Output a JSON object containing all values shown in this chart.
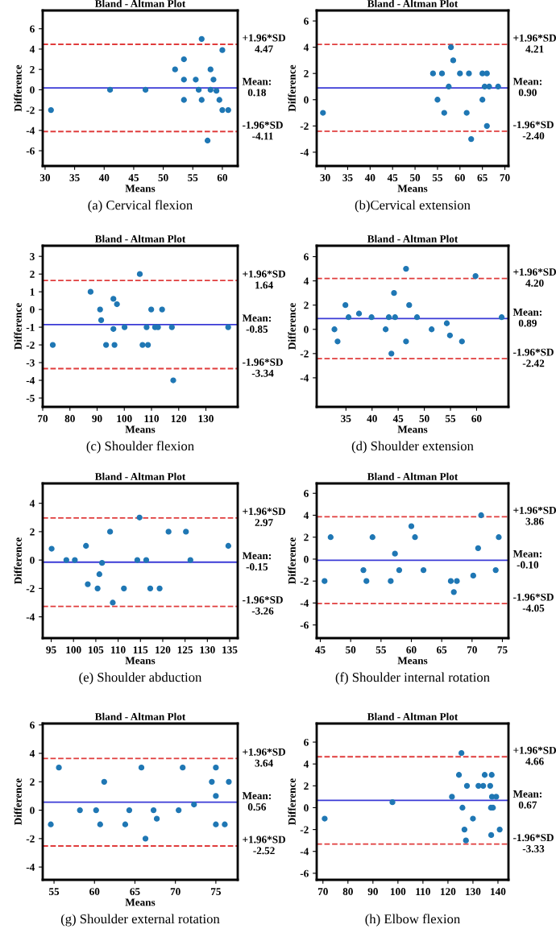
{
  "chart_data": [
    {
      "type": "scatter",
      "title": "Bland - Altman Plot",
      "xlabel": "Means",
      "ylabel": "Difference",
      "marker": "circle",
      "grid": false,
      "legend": false,
      "xlim": [
        29.6,
        62.6
      ],
      "xticks": [
        30,
        35,
        40,
        45,
        50,
        55,
        60
      ],
      "ylim": [
        -7.5,
        7.8
      ],
      "yticks": [
        -6,
        -4,
        -2,
        0,
        2,
        4,
        6
      ],
      "series": [
        {
          "color": "#1f77b4",
          "x": [
            31,
            41,
            47,
            52,
            53.5,
            53.5,
            53.5,
            55.5,
            56,
            56.5,
            56.5,
            57.5,
            58,
            58,
            58.5,
            59,
            59.5,
            60,
            60,
            61
          ],
          "values": [
            -2,
            0,
            0,
            2,
            3,
            1,
            -1,
            1,
            0,
            5,
            -1,
            -5,
            2,
            0,
            1,
            -0.1,
            -1,
            3.9,
            -2,
            -2
          ]
        }
      ],
      "ref_lines": [
        {
          "axis": "y",
          "value": 4.47,
          "label": "+1.96*SD\n4.47",
          "color": "#e03c3c",
          "line_style": "dashed"
        },
        {
          "axis": "y",
          "value": 0.18,
          "label": "Mean:\n0.18",
          "color": "#3a3ad6",
          "line_style": "solid"
        },
        {
          "axis": "y",
          "value": -4.11,
          "label": "-1.96*SD\n-4.11",
          "color": "#e03c3c",
          "line_style": "dashed"
        }
      ],
      "annotations": [
        "(a) Cervical flexion"
      ]
    },
    {
      "type": "scatter",
      "title": "Bland - Altman Plot",
      "xlabel": "Means",
      "ylabel": "Difference",
      "marker": "circle",
      "grid": false,
      "legend": false,
      "xlim": [
        28.1,
        70.8
      ],
      "xticks": [
        30,
        35,
        40,
        45,
        50,
        55,
        60,
        65,
        70
      ],
      "ylim": [
        -5.05,
        6.8
      ],
      "yticks": [
        -4,
        -2,
        0,
        2,
        4,
        6
      ],
      "series": [
        {
          "color": "#1f77b4",
          "x": [
            29.5,
            54,
            55,
            56,
            56.5,
            57.5,
            58,
            58.5,
            60,
            61.5,
            62,
            62.5,
            65,
            65,
            65.5,
            66,
            66,
            66.5,
            68.5
          ],
          "values": [
            -1,
            2,
            0,
            2,
            -1,
            1,
            4,
            3,
            2,
            -1,
            2,
            -3,
            2,
            0,
            1,
            2,
            -2,
            1,
            1
          ]
        }
      ],
      "ref_lines": [
        {
          "axis": "y",
          "value": 4.21,
          "label": "+1.96*SD\n4.21",
          "color": "#e03c3c",
          "line_style": "dashed"
        },
        {
          "axis": "y",
          "value": 0.9,
          "label": "Mean:\n0.90",
          "color": "#3a3ad6",
          "line_style": "solid"
        },
        {
          "axis": "y",
          "value": -2.4,
          "label": "-1.96*SD\n-2.40",
          "color": "#e03c3c",
          "line_style": "dashed"
        }
      ],
      "annotations": [
        "(b)Cervical extension"
      ]
    },
    {
      "type": "scatter",
      "title": "Bland - Altman Plot",
      "xlabel": "Means",
      "ylabel": "Difference",
      "marker": "circle",
      "grid": false,
      "legend": false,
      "xlim": [
        70,
        141.7
      ],
      "xticks": [
        70,
        80,
        90,
        100,
        110,
        120,
        130
      ],
      "ylim": [
        -5.5,
        3.6
      ],
      "yticks": [
        -5,
        -4,
        -3,
        -2,
        -1,
        0,
        1,
        2,
        3
      ],
      "series": [
        {
          "color": "#1f77b4",
          "x": [
            73.7,
            87.6,
            91.1,
            91.5,
            93.3,
            96,
            96,
            96.4,
            97.3,
            100.1,
            105.7,
            106.7,
            108.2,
            108.7,
            109.9,
            111.3,
            112.4,
            113.9,
            117.5,
            118,
            138.2
          ],
          "values": [
            -2,
            1,
            0,
            -0.6,
            -2,
            0.6,
            -1.1,
            -2,
            0.3,
            -1,
            2,
            -2,
            -1,
            -2,
            0,
            -1,
            -1,
            0,
            -1,
            -4,
            -1
          ]
        }
      ],
      "ref_lines": [
        {
          "axis": "y",
          "value": 1.64,
          "label": "+1.96*SD\n1.64",
          "color": "#e03c3c",
          "line_style": "dashed"
        },
        {
          "axis": "y",
          "value": -0.85,
          "label": "Mean:\n-0.85",
          "color": "#3a3ad6",
          "line_style": "solid"
        },
        {
          "axis": "y",
          "value": -3.34,
          "label": "-1.96*SD\n-3.34",
          "color": "#e03c3c",
          "line_style": "dashed"
        }
      ],
      "annotations": [
        "(c) Shoulder flexion"
      ]
    },
    {
      "type": "scatter",
      "title": "Bland - Altman Plot",
      "xlabel": "Means",
      "ylabel": "Difference",
      "marker": "circle",
      "grid": false,
      "legend": false,
      "xlim": [
        29.4,
        66.1
      ],
      "xticks": [
        35,
        40,
        45,
        50,
        55,
        60
      ],
      "ylim": [
        -6.4,
        6.9
      ],
      "yticks": [
        -4,
        -2,
        0,
        2,
        4,
        6
      ],
      "series": [
        {
          "color": "#1f77b4",
          "x": [
            32.8,
            33.4,
            34.9,
            35.5,
            37.5,
            39.9,
            42.6,
            43.2,
            43.7,
            44.2,
            44.4,
            46.5,
            46.5,
            47.1,
            48.6,
            51.4,
            54.3,
            54.9,
            57.2,
            59.8,
            64.8
          ],
          "values": [
            0,
            -1,
            2,
            1,
            1.3,
            1,
            0,
            1,
            -2,
            3,
            1,
            5,
            -1,
            2,
            1,
            0,
            0.5,
            -0.5,
            -1,
            4.4,
            1
          ]
        }
      ],
      "ref_lines": [
        {
          "axis": "y",
          "value": 4.2,
          "label": "+1.96*SD\n4.20",
          "color": "#e03c3c",
          "line_style": "dashed"
        },
        {
          "axis": "y",
          "value": 0.89,
          "label": "Mean:\n0.89",
          "color": "#3a3ad6",
          "line_style": "solid"
        },
        {
          "axis": "y",
          "value": -2.42,
          "label": "-1.96*SD\n-2.42",
          "color": "#e03c3c",
          "line_style": "dashed"
        }
      ],
      "annotations": [
        "(d) Shoulder extension"
      ]
    },
    {
      "type": "scatter",
      "title": "Bland - Altman Plot",
      "xlabel": "Means",
      "ylabel": "Difference",
      "marker": "circle",
      "grid": false,
      "legend": false,
      "xlim": [
        93.1,
        136.8
      ],
      "xticks": [
        95,
        100,
        105,
        110,
        115,
        120,
        125,
        130,
        135
      ],
      "ylim": [
        -5.5,
        5.4
      ],
      "yticks": [
        -4,
        -2,
        0,
        2,
        4
      ],
      "series": [
        {
          "color": "#1f77b4",
          "x": [
            95.1,
            98.4,
            100.3,
            102.8,
            103.2,
            105.4,
            105.8,
            106.4,
            108.2,
            108.8,
            111.3,
            114.3,
            114.8,
            116.3,
            117.2,
            119.3,
            121.3,
            125.2,
            126.2,
            134.7
          ],
          "values": [
            0.8,
            0,
            0,
            1,
            -1.7,
            -2,
            -1,
            -0.2,
            2,
            -3,
            -2,
            0,
            3,
            0,
            -2,
            -2,
            2,
            2,
            0,
            1
          ]
        }
      ],
      "ref_lines": [
        {
          "axis": "y",
          "value": 2.97,
          "label": "+1.96*SD\n2.97",
          "color": "#e03c3c",
          "line_style": "dashed"
        },
        {
          "axis": "y",
          "value": -0.15,
          "label": "Mean:\n-0.15",
          "color": "#3a3ad6",
          "line_style": "solid"
        },
        {
          "axis": "y",
          "value": -3.26,
          "label": "-1.96*SD\n-3.26",
          "color": "#e03c3c",
          "line_style": "dashed"
        }
      ],
      "annotations": [
        "(e) Shoulder abduction"
      ]
    },
    {
      "type": "scatter",
      "title": "Bland - Altman Plot",
      "xlabel": "Means",
      "ylabel": "Difference",
      "marker": "circle",
      "grid": false,
      "legend": false,
      "xlim": [
        44.4,
        76.0
      ],
      "xticks": [
        45,
        50,
        55,
        60,
        65,
        70,
        75
      ],
      "ylim": [
        -7.2,
        6.9
      ],
      "yticks": [
        -6,
        -4,
        -2,
        0,
        2,
        4,
        6
      ],
      "series": [
        {
          "color": "#1f77b4",
          "x": [
            45.7,
            46.7,
            52.1,
            52.6,
            53.6,
            56.6,
            57.3,
            58,
            60,
            60.6,
            62,
            66.5,
            67,
            67.5,
            70.2,
            71,
            71.5,
            73.9,
            74.4
          ],
          "values": [
            -2,
            2,
            -1,
            -2,
            2,
            -2,
            0.5,
            -1,
            3,
            2,
            -1,
            -2,
            -3,
            -2,
            -1.5,
            1,
            4,
            -1,
            2
          ]
        }
      ],
      "ref_lines": [
        {
          "axis": "y",
          "value": 3.86,
          "label": "+1.96*SD\n3.86",
          "color": "#e03c3c",
          "line_style": "dashed"
        },
        {
          "axis": "y",
          "value": -0.1,
          "label": "Mean:\n-0.10",
          "color": "#3a3ad6",
          "line_style": "solid"
        },
        {
          "axis": "y",
          "value": -4.05,
          "label": "-1.96*SD\n-4.05",
          "color": "#e03c3c",
          "line_style": "dashed"
        }
      ],
      "annotations": [
        "(f) Shoulder internal rotation"
      ]
    },
    {
      "type": "scatter",
      "title": "Bland - Altman Plot",
      "xlabel": "Means",
      "ylabel": "Difference",
      "marker": "circle",
      "grid": false,
      "legend": false,
      "xlim": [
        53.6,
        77.7
      ],
      "xticks": [
        55,
        60,
        65,
        70,
        75
      ],
      "ylim": [
        -4.9,
        6.1
      ],
      "yticks": [
        -4,
        -2,
        0,
        2,
        4,
        6
      ],
      "series": [
        {
          "color": "#1f77b4",
          "x": [
            54.6,
            55.6,
            58.2,
            60.2,
            60.7,
            61.2,
            63.8,
            64.3,
            65.8,
            66.3,
            67.3,
            67.7,
            70.4,
            70.9,
            72.3,
            74.5,
            75,
            75,
            75,
            76.1,
            76.6
          ],
          "values": [
            -1,
            3,
            0,
            0,
            -1,
            2,
            -1,
            0,
            3,
            -2,
            0,
            -0.6,
            0,
            3,
            0.4,
            2,
            3,
            1,
            -1,
            -1,
            2
          ]
        }
      ],
      "ref_lines": [
        {
          "axis": "y",
          "value": 3.64,
          "label": "+1.96*SD\n3.64",
          "color": "#e03c3c",
          "line_style": "dashed"
        },
        {
          "axis": "y",
          "value": 0.56,
          "label": "Mean:\n0.56",
          "color": "#3a3ad6",
          "line_style": "solid"
        },
        {
          "axis": "y",
          "value": -2.52,
          "label": "+1.96*SD\n-2.52",
          "color": "#e03c3c",
          "line_style": "dashed"
        }
      ],
      "annotations": [
        "(g) Shoulder external rotation"
      ]
    },
    {
      "type": "scatter",
      "title": "Bland - Altman Plot",
      "ylabel": "Difference",
      "marker": "circle",
      "grid": false,
      "legend": false,
      "xlim": [
        67.5,
        144.2
      ],
      "xticks": [
        70,
        80,
        90,
        100,
        110,
        120,
        130,
        140
      ],
      "ylim": [
        -6.6,
        7.7
      ],
      "yticks": [
        -6,
        -4,
        -2,
        0,
        2,
        4,
        6
      ],
      "series": [
        {
          "color": "#1f77b4",
          "x": [
            70.7,
            97.8,
            121.6,
            124.4,
            125.4,
            125.8,
            126.6,
            127.2,
            127.6,
            130,
            132.2,
            134.1,
            134.7,
            136.9,
            137.2,
            137.3,
            137.5,
            137.6,
            138,
            139.3,
            140.7
          ],
          "values": [
            -1,
            0.5,
            1,
            3,
            5,
            0,
            -2,
            -3,
            2,
            -1,
            2,
            2,
            3,
            2,
            0,
            -2.5,
            3,
            1,
            0,
            1,
            -2
          ]
        }
      ],
      "ref_lines": [
        {
          "axis": "y",
          "value": 4.66,
          "label": "+1.96*SD\n4.66",
          "color": "#e03c3c",
          "line_style": "dashed"
        },
        {
          "axis": "y",
          "value": 0.67,
          "label": "Mean:\n0.67",
          "color": "#3a3ad6",
          "line_style": "solid"
        },
        {
          "axis": "y",
          "value": -3.33,
          "label": "-1.96*SD\n-3.33",
          "color": "#e03c3c",
          "line_style": "dashed"
        }
      ],
      "annotations": [
        "(h) Elbow flexion"
      ]
    }
  ]
}
